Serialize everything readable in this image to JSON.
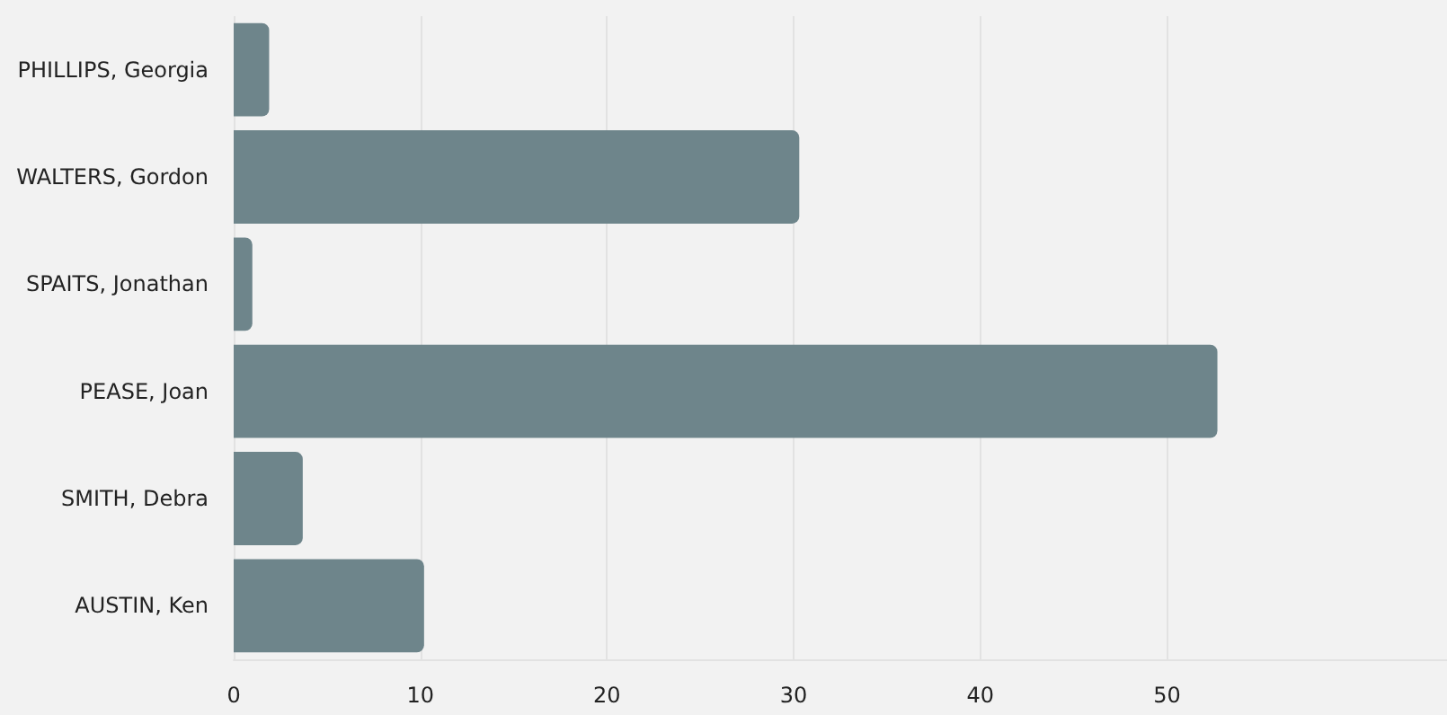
{
  "chart_data": {
    "type": "bar",
    "orientation": "horizontal",
    "categories": [
      "PHILLIPS, Georgia",
      "WALTERS, Gordon",
      "SPAITS, Jonathan",
      "PEASE, Joan",
      "SMITH, Debra",
      "AUSTIN, Ken"
    ],
    "values": [
      1.9,
      30.3,
      1.0,
      52.7,
      3.7,
      10.2
    ],
    "color": "#6e858b",
    "xlim": [
      0,
      65
    ],
    "xticks": [
      0,
      10,
      20,
      30,
      40,
      50
    ],
    "grid": "x"
  }
}
